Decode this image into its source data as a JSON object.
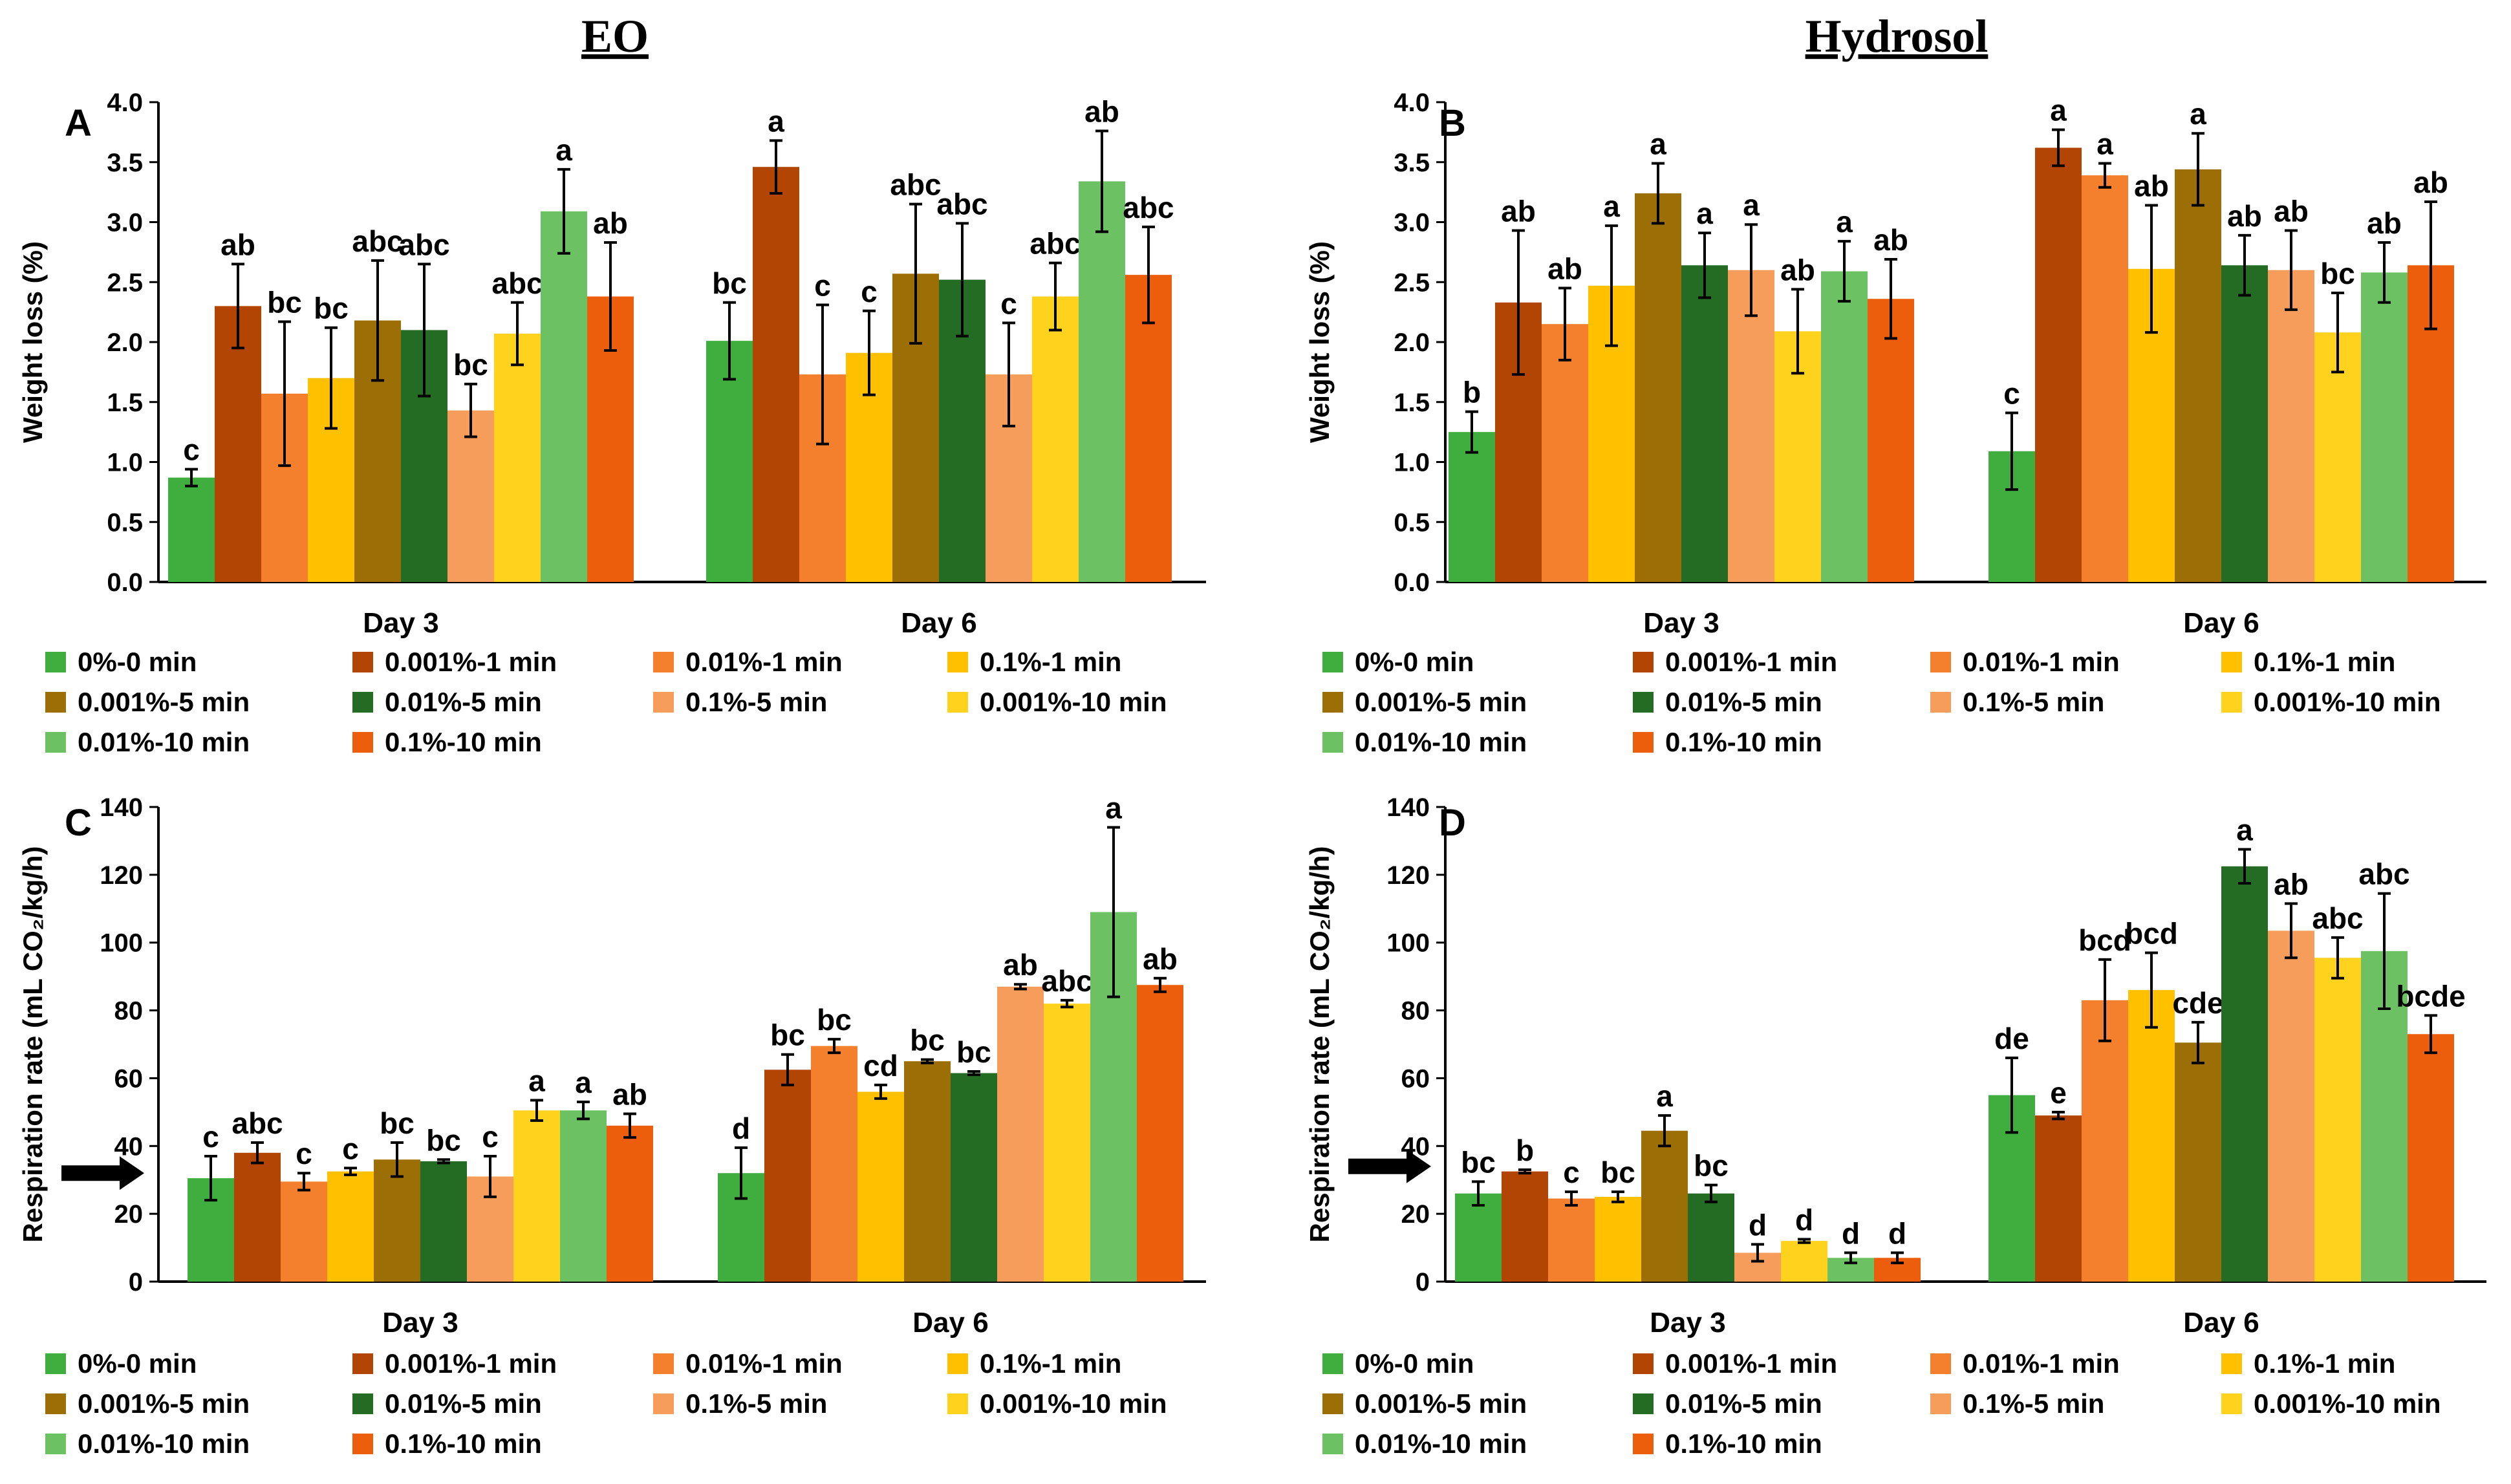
{
  "headers": {
    "left": "EO",
    "right": "Hydrosol"
  },
  "colors": [
    "#3fae3f",
    "#b34504",
    "#f47f2d",
    "#ffc000",
    "#9b6f06",
    "#246b24",
    "#f79d5c",
    "#ffd21e",
    "#6cc262",
    "#ec5d0c"
  ],
  "chart_data": [
    {
      "panel": "A",
      "type": "bar",
      "ylabel": "Weight loss (%)",
      "ylim": [
        0,
        4.0
      ],
      "yticks": [
        "0.0",
        "0.5",
        "1.0",
        "1.5",
        "2.0",
        "2.5",
        "3.0",
        "3.5",
        "4.0"
      ],
      "categories": [
        "Day 3",
        "Day 6"
      ],
      "series": [
        {
          "name": "0%-0 min",
          "values": [
            0.87,
            2.01
          ],
          "errors": [
            0.07,
            0.32
          ],
          "letters": [
            "c",
            "bc"
          ]
        },
        {
          "name": "0.001%-1 min",
          "values": [
            2.3,
            3.46
          ],
          "errors": [
            0.35,
            0.22
          ],
          "letters": [
            "ab",
            "a"
          ]
        },
        {
          "name": "0.01%-1 min",
          "values": [
            1.57,
            1.73
          ],
          "errors": [
            0.6,
            0.58
          ],
          "letters": [
            "bc",
            "c"
          ]
        },
        {
          "name": "0.1%-1 min",
          "values": [
            1.7,
            1.91
          ],
          "errors": [
            0.42,
            0.35
          ],
          "letters": [
            "bc",
            "c"
          ]
        },
        {
          "name": "0.001%-5 min",
          "values": [
            2.18,
            2.57
          ],
          "errors": [
            0.5,
            0.58
          ],
          "letters": [
            "abc",
            "abc"
          ]
        },
        {
          "name": "0.01%-5 min",
          "values": [
            2.1,
            2.52
          ],
          "errors": [
            0.55,
            0.47
          ],
          "letters": [
            "abc",
            "abc"
          ]
        },
        {
          "name": "0.1%-5 min",
          "values": [
            1.43,
            1.73
          ],
          "errors": [
            0.22,
            0.43
          ],
          "letters": [
            "bc",
            "c"
          ]
        },
        {
          "name": "0.001%-10 min",
          "values": [
            2.07,
            2.38
          ],
          "errors": [
            0.26,
            0.28
          ],
          "letters": [
            "abc",
            "abc"
          ]
        },
        {
          "name": "0.01%-10 min",
          "values": [
            3.09,
            3.34
          ],
          "errors": [
            0.35,
            0.42
          ],
          "letters": [
            "a",
            "ab"
          ]
        },
        {
          "name": "0.1%-10 min",
          "values": [
            2.38,
            2.56
          ],
          "errors": [
            0.45,
            0.4
          ],
          "letters": [
            "ab",
            "abc"
          ]
        }
      ]
    },
    {
      "panel": "B",
      "type": "bar",
      "ylabel": "Weight loss (%)",
      "ylim": [
        0,
        4.0
      ],
      "yticks": [
        "0.0",
        "0.5",
        "1.0",
        "1.5",
        "2.0",
        "2.5",
        "3.0",
        "3.5",
        "4.0"
      ],
      "categories": [
        "Day 3",
        "Day 6"
      ],
      "series": [
        {
          "name": "0%-0 min",
          "values": [
            1.25,
            1.09
          ],
          "errors": [
            0.17,
            0.32
          ],
          "letters": [
            "b",
            "c"
          ]
        },
        {
          "name": "0.001%-1 min",
          "values": [
            2.33,
            3.62
          ],
          "errors": [
            0.6,
            0.15
          ],
          "letters": [
            "ab",
            "a"
          ]
        },
        {
          "name": "0.01%-1 min",
          "values": [
            2.15,
            3.39
          ],
          "errors": [
            0.3,
            0.1
          ],
          "letters": [
            "ab",
            "a"
          ]
        },
        {
          "name": "0.1%-1 min",
          "values": [
            2.47,
            2.61
          ],
          "errors": [
            0.5,
            0.53
          ],
          "letters": [
            "a",
            "ab"
          ]
        },
        {
          "name": "0.001%-5 min",
          "values": [
            3.24,
            3.44
          ],
          "errors": [
            0.25,
            0.3
          ],
          "letters": [
            "a",
            "a"
          ]
        },
        {
          "name": "0.01%-5 min",
          "values": [
            2.64,
            2.64
          ],
          "errors": [
            0.27,
            0.25
          ],
          "letters": [
            "a",
            "ab"
          ]
        },
        {
          "name": "0.1%-5 min",
          "values": [
            2.6,
            2.6
          ],
          "errors": [
            0.38,
            0.33
          ],
          "letters": [
            "a",
            "ab"
          ]
        },
        {
          "name": "0.001%-10 min",
          "values": [
            2.09,
            2.08
          ],
          "errors": [
            0.35,
            0.33
          ],
          "letters": [
            "ab",
            "bc"
          ]
        },
        {
          "name": "0.01%-10 min",
          "values": [
            2.59,
            2.58
          ],
          "errors": [
            0.25,
            0.25
          ],
          "letters": [
            "a",
            "ab"
          ]
        },
        {
          "name": "0.1%-10 min",
          "values": [
            2.36,
            2.64
          ],
          "errors": [
            0.33,
            0.53
          ],
          "letters": [
            "ab",
            "ab"
          ]
        }
      ]
    },
    {
      "panel": "C",
      "type": "bar",
      "ylabel": "Respiration rate (mL CO₂/kg/h)",
      "ylim": [
        0,
        140
      ],
      "yticks": [
        "0",
        "20",
        "40",
        "60",
        "80",
        "100",
        "120",
        "140"
      ],
      "baseline_arrow": 32,
      "categories": [
        "Day 3",
        "Day 6"
      ],
      "series": [
        {
          "name": "0%-0 min",
          "values": [
            30.5,
            32.0
          ],
          "errors": [
            6.5,
            7.5
          ],
          "letters": [
            "c",
            "d"
          ]
        },
        {
          "name": "0.001%-1 min",
          "values": [
            38.0,
            62.5
          ],
          "errors": [
            3.0,
            4.5
          ],
          "letters": [
            "abc",
            "bc"
          ]
        },
        {
          "name": "0.01%-1 min",
          "values": [
            29.5,
            69.5
          ],
          "errors": [
            2.5,
            2.0
          ],
          "letters": [
            "c",
            "bc"
          ]
        },
        {
          "name": "0.1%-1 min",
          "values": [
            32.5,
            56.0
          ],
          "errors": [
            1.0,
            2.0
          ],
          "letters": [
            "c",
            "cd"
          ]
        },
        {
          "name": "0.001%-5 min",
          "values": [
            36.0,
            65.0
          ],
          "errors": [
            5.0,
            0.5
          ],
          "letters": [
            "bc",
            "bc"
          ]
        },
        {
          "name": "0.01%-5 min",
          "values": [
            35.5,
            61.5
          ],
          "errors": [
            0.5,
            0.5
          ],
          "letters": [
            "bc",
            "bc"
          ]
        },
        {
          "name": "0.1%-5 min",
          "values": [
            31.0,
            87.0
          ],
          "errors": [
            6.0,
            0.7
          ],
          "letters": [
            "c",
            "ab"
          ]
        },
        {
          "name": "0.001%-10 min",
          "values": [
            50.5,
            82.0
          ],
          "errors": [
            3.0,
            1.0
          ],
          "letters": [
            "a",
            "abc"
          ]
        },
        {
          "name": "0.01%-10 min",
          "values": [
            50.5,
            109.0
          ],
          "errors": [
            2.5,
            25.0
          ],
          "letters": [
            "a",
            "a"
          ]
        },
        {
          "name": "0.1%-10 min",
          "values": [
            46.0,
            87.5
          ],
          "errors": [
            3.5,
            2.0
          ],
          "letters": [
            "ab",
            "ab"
          ]
        }
      ]
    },
    {
      "panel": "D",
      "type": "bar",
      "ylabel": "Respiration rate (mL CO₂/kg/h)",
      "ylim": [
        0,
        140
      ],
      "yticks": [
        "0",
        "20",
        "40",
        "60",
        "80",
        "100",
        "120",
        "140"
      ],
      "baseline_arrow": 34,
      "categories": [
        "Day 3",
        "Day 6"
      ],
      "series": [
        {
          "name": "0%-0 min",
          "values": [
            26.0,
            55.0
          ],
          "errors": [
            3.5,
            11.0
          ],
          "letters": [
            "bc",
            "de"
          ]
        },
        {
          "name": "0.001%-1 min",
          "values": [
            32.5,
            49.0
          ],
          "errors": [
            0.5,
            1.0
          ],
          "letters": [
            "b",
            "e"
          ]
        },
        {
          "name": "0.01%-1 min",
          "values": [
            24.5,
            83.0
          ],
          "errors": [
            2.0,
            12.0
          ],
          "letters": [
            "c",
            "bcd"
          ]
        },
        {
          "name": "0.1%-1 min",
          "values": [
            25.0,
            86.0
          ],
          "errors": [
            1.5,
            11.0
          ],
          "letters": [
            "bc",
            "bcd"
          ]
        },
        {
          "name": "0.001%-5 min",
          "values": [
            44.5,
            70.5
          ],
          "errors": [
            4.5,
            6.0
          ],
          "letters": [
            "a",
            "cde"
          ]
        },
        {
          "name": "0.01%-5 min",
          "values": [
            26.0,
            122.5
          ],
          "errors": [
            2.5,
            5.0
          ],
          "letters": [
            "bc",
            "a"
          ]
        },
        {
          "name": "0.1%-5 min",
          "values": [
            8.5,
            103.5
          ],
          "errors": [
            2.5,
            8.0
          ],
          "letters": [
            "d",
            "ab"
          ]
        },
        {
          "name": "0.001%-10 min",
          "values": [
            12.0,
            95.5
          ],
          "errors": [
            0.5,
            6.0
          ],
          "letters": [
            "d",
            "abc"
          ]
        },
        {
          "name": "0.01%-10 min",
          "values": [
            7.0,
            97.5
          ],
          "errors": [
            1.5,
            17.0
          ],
          "letters": [
            "d",
            "abc"
          ]
        },
        {
          "name": "0.1%-10 min",
          "values": [
            7.0,
            73.0
          ],
          "errors": [
            1.5,
            5.5
          ],
          "letters": [
            "d",
            "bcde"
          ]
        }
      ]
    }
  ]
}
